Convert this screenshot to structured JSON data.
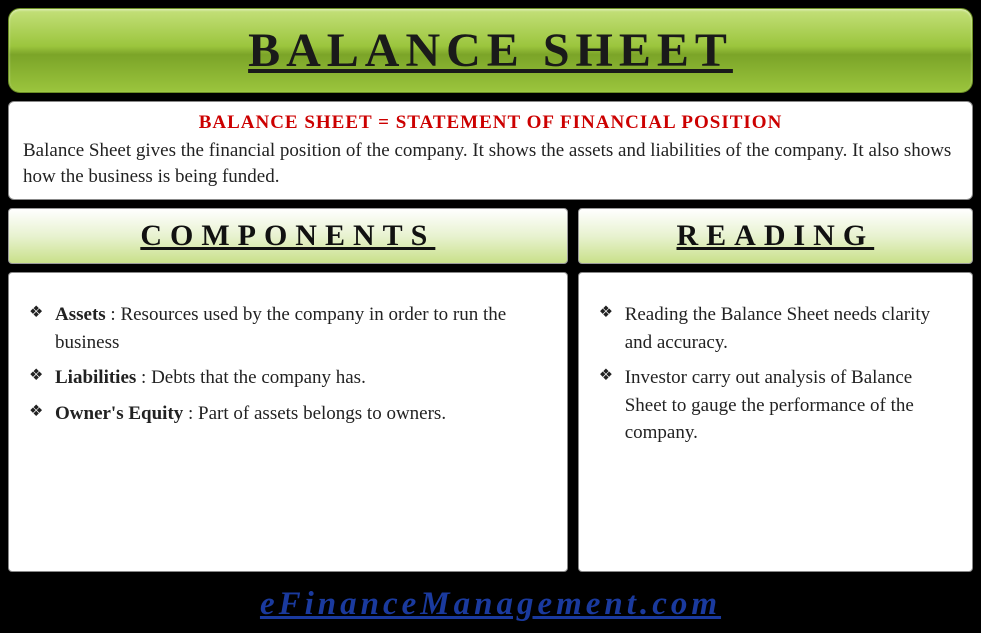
{
  "colors": {
    "page_bg": "#000000",
    "banner_gradient_top": "#c4e07a",
    "banner_gradient_mid": "#9bc53d",
    "banner_gradient_dark": "#7ba428",
    "banner_border": "#6b8e23",
    "box_bg": "#ffffff",
    "box_border": "#888888",
    "accent_red": "#cc0000",
    "text_dark": "#1a1a1a",
    "section_grad_top": "#ffffff",
    "section_grad_mid": "#e8f2d0",
    "section_grad_bottom": "#c9e08a",
    "footer_link": "#1a3a9e"
  },
  "typography": {
    "title_fontsize": 48,
    "title_letterspacing": 6,
    "section_header_fontsize": 30,
    "section_header_letterspacing": 8,
    "body_fontsize": 19,
    "footer_fontsize": 33,
    "footer_letterspacing": 4,
    "font_family": "Georgia, serif"
  },
  "title": "BALANCE SHEET",
  "intro": {
    "heading": "BALANCE SHEET = STATEMENT OF FINANCIAL POSITION",
    "text": "Balance Sheet gives the financial position of the company. It shows the assets and liabilities of the company. It also shows how the business is being funded."
  },
  "sections": {
    "components": {
      "header": "COMPONENTS",
      "items": [
        {
          "term": "Assets",
          "desc": " : Resources used by the company in order to run the business"
        },
        {
          "term": "Liabilities",
          "desc": " : Debts that the company has."
        },
        {
          "term": "Owner's Equity",
          "desc": " : Part of assets belongs to owners."
        }
      ]
    },
    "reading": {
      "header": "READING",
      "items": [
        {
          "text": "Reading the Balance Sheet needs clarity and accuracy."
        },
        {
          "text": "Investor carry out analysis of Balance Sheet to gauge the performance of the company."
        }
      ]
    }
  },
  "footer": {
    "link_text": "eFinanceManagement.com"
  }
}
